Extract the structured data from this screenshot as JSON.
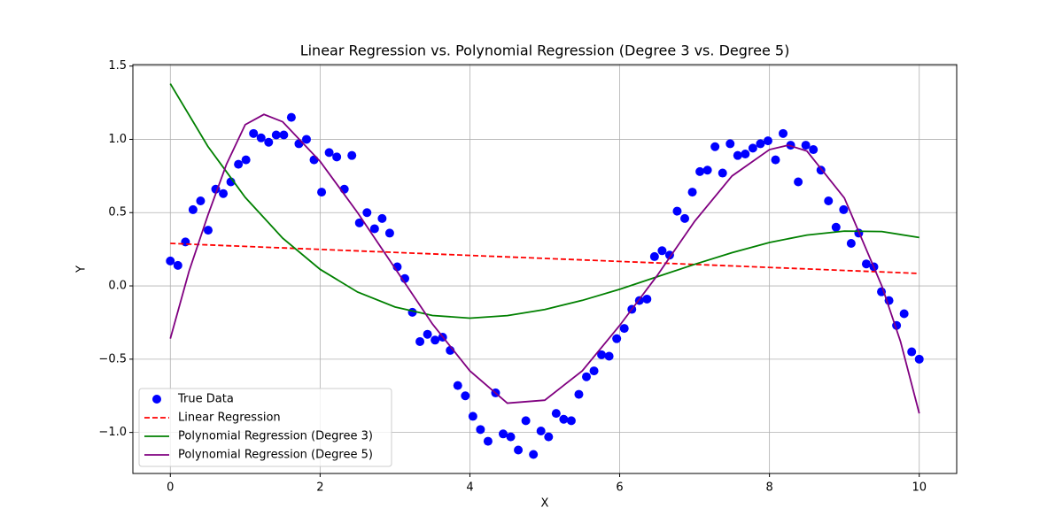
{
  "chart_data": {
    "type": "scatter",
    "title": "Linear Regression vs. Polynomial Regression (Degree 3 vs. Degree 5)",
    "x_label": "X",
    "y_label": "Y",
    "xlim": [
      -0.5,
      10.5
    ],
    "ylim": [
      -1.28,
      1.51
    ],
    "xticks": [
      0,
      2,
      4,
      6,
      8,
      10
    ],
    "yticks": [
      {
        "value": -1.0,
        "label": "−1.0"
      },
      {
        "value": -0.5,
        "label": "−0.5"
      },
      {
        "value": 0.0,
        "label": "0.0"
      },
      {
        "value": 0.5,
        "label": "0.5"
      },
      {
        "value": 1.0,
        "label": "1.0"
      },
      {
        "value": 1.5,
        "label": "1.5"
      }
    ],
    "grid": true,
    "legend": "lower left",
    "series": [
      {
        "name": "True Data",
        "type": "scatter",
        "color": "#0000ff",
        "x": [
          0,
          0.101,
          0.202,
          0.303,
          0.404,
          0.505,
          0.606,
          0.707,
          0.808,
          0.909,
          1.01,
          1.111,
          1.212,
          1.313,
          1.414,
          1.515,
          1.616,
          1.717,
          1.818,
          1.919,
          2.02,
          2.121,
          2.222,
          2.323,
          2.424,
          2.525,
          2.626,
          2.727,
          2.828,
          2.929,
          3.03,
          3.131,
          3.232,
          3.333,
          3.434,
          3.535,
          3.636,
          3.737,
          3.838,
          3.939,
          4.04,
          4.141,
          4.242,
          4.343,
          4.444,
          4.545,
          4.646,
          4.747,
          4.848,
          4.949,
          5.051,
          5.152,
          5.253,
          5.354,
          5.455,
          5.556,
          5.657,
          5.758,
          5.859,
          5.96,
          6.061,
          6.162,
          6.263,
          6.364,
          6.465,
          6.566,
          6.667,
          6.768,
          6.869,
          6.97,
          7.071,
          7.172,
          7.273,
          7.374,
          7.475,
          7.576,
          7.677,
          7.778,
          7.879,
          7.98,
          8.081,
          8.182,
          8.283,
          8.384,
          8.485,
          8.586,
          8.687,
          8.788,
          8.889,
          8.99,
          9.091,
          9.192,
          9.293,
          9.394,
          9.495,
          9.596,
          9.697,
          9.798,
          9.899,
          10
        ],
        "values": [
          0.17,
          0.14,
          0.3,
          0.52,
          0.58,
          0.38,
          0.66,
          0.63,
          0.71,
          0.83,
          0.86,
          1.04,
          1.01,
          0.98,
          1.03,
          1.03,
          1.15,
          0.97,
          1.0,
          0.86,
          0.64,
          0.91,
          0.88,
          0.66,
          0.89,
          0.43,
          0.5,
          0.39,
          0.46,
          0.36,
          0.13,
          0.05,
          -0.18,
          -0.38,
          -0.33,
          -0.37,
          -0.35,
          -0.44,
          -0.68,
          -0.75,
          -0.89,
          -0.98,
          -1.06,
          -0.73,
          -1.01,
          -1.03,
          -1.12,
          -0.92,
          -1.15,
          -0.99,
          -1.03,
          -0.87,
          -0.91,
          -0.92,
          -0.74,
          -0.62,
          -0.58,
          -0.47,
          -0.48,
          -0.36,
          -0.29,
          -0.16,
          -0.1,
          -0.09,
          0.2,
          0.24,
          0.21,
          0.51,
          0.46,
          0.64,
          0.78,
          0.79,
          0.95,
          0.77,
          0.97,
          0.89,
          0.9,
          0.94,
          0.97,
          0.99,
          0.86,
          1.04,
          0.96,
          0.71,
          0.96,
          0.93,
          0.79,
          0.58,
          0.4,
          0.52,
          0.29,
          0.36,
          0.15,
          0.13,
          -0.04,
          -0.1,
          -0.27,
          -0.19,
          -0.45,
          -0.5
        ]
      },
      {
        "name": "Linear Regression",
        "type": "line",
        "linestyle": "dashed",
        "color": "#ff0000",
        "x": [
          0,
          10
        ],
        "values": [
          0.29,
          0.085
        ]
      },
      {
        "name": "Polynomial Regression (Degree 3)",
        "type": "line",
        "linestyle": "solid",
        "color": "#008000",
        "x": [
          0,
          0.5,
          1,
          1.5,
          2,
          2.5,
          3,
          3.5,
          4,
          4.5,
          5,
          5.5,
          6,
          6.5,
          7,
          7.5,
          8,
          8.5,
          9,
          9.5,
          10
        ],
        "values": [
          1.38,
          0.953,
          0.604,
          0.326,
          0.113,
          -0.042,
          -0.144,
          -0.202,
          -0.22,
          -0.203,
          -0.161,
          -0.099,
          -0.023,
          0.062,
          0.147,
          0.227,
          0.296,
          0.347,
          0.374,
          0.371,
          0.33
        ]
      },
      {
        "name": "Polynomial Regression (Degree 5)",
        "type": "line",
        "linestyle": "solid",
        "color": "#800080",
        "x": [
          0,
          0.25,
          0.5,
          0.75,
          1,
          1.25,
          1.5,
          2,
          2.5,
          3,
          3.5,
          4,
          4.5,
          5,
          5.5,
          6,
          6.5,
          7,
          7.5,
          8,
          8.25,
          8.5,
          9,
          9.5,
          9.75,
          10
        ],
        "values": [
          -0.36,
          0.1,
          0.48,
          0.83,
          1.1,
          1.17,
          1.12,
          0.85,
          0.5,
          0.12,
          -0.26,
          -0.58,
          -0.8,
          -0.78,
          -0.58,
          -0.27,
          0.07,
          0.44,
          0.75,
          0.93,
          0.96,
          0.92,
          0.6,
          0.0,
          -0.38,
          -0.87
        ]
      }
    ]
  }
}
